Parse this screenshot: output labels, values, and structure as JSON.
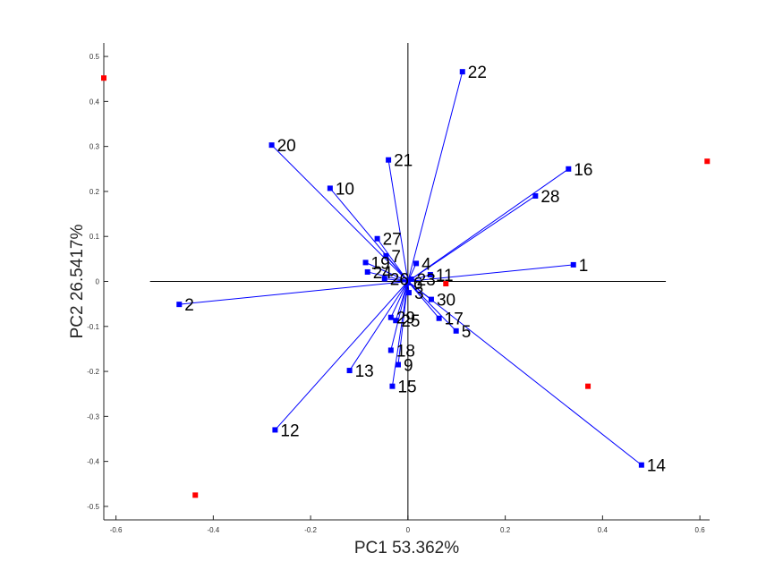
{
  "chart_data": {
    "type": "scatter",
    "title": "",
    "xlabel": "PC1 53.362%",
    "ylabel": "PC2 26.5417%",
    "xlim": [
      -0.625,
      0.62
    ],
    "ylim": [
      -0.53,
      0.53
    ],
    "x_ticks": [
      -0.6,
      -0.4,
      -0.2,
      0,
      0.2,
      0.4,
      0.6
    ],
    "x_tick_labels": [
      "-0.6",
      "-0.4",
      "-0.2",
      "0",
      "0.2",
      "0.4",
      "0.6"
    ],
    "y_ticks": [
      -0.5,
      -0.4,
      -0.3,
      -0.2,
      -0.1,
      0,
      0.1,
      0.2,
      0.3,
      0.4,
      0.5
    ],
    "y_tick_labels": [
      "-0.5",
      "-0.4",
      "-0.3",
      "-0.2",
      "-0.1",
      "0",
      "0.1",
      "0.2",
      "0.3",
      "0.4",
      "0.5"
    ],
    "grid": false,
    "reference_lines": {
      "x": [
        -0.53,
        0.53
      ],
      "y": [
        -0.53,
        0.53
      ]
    },
    "loadings": {
      "color": "#0000ff",
      "points": [
        {
          "label": "1",
          "x": 0.34,
          "y": 0.037
        },
        {
          "label": "2",
          "x": -0.47,
          "y": -0.051
        },
        {
          "label": "3",
          "x": 0.002,
          "y": -0.025
        },
        {
          "label": "4",
          "x": 0.017,
          "y": 0.04
        },
        {
          "label": "5",
          "x": 0.099,
          "y": -0.11
        },
        {
          "label": "6",
          "x": 0.0,
          "y": -0.003
        },
        {
          "label": "7",
          "x": -0.045,
          "y": 0.057
        },
        {
          "label": "9",
          "x": -0.02,
          "y": -0.185
        },
        {
          "label": "10",
          "x": -0.16,
          "y": 0.207
        },
        {
          "label": "11",
          "x": 0.046,
          "y": 0.015
        },
        {
          "label": "12",
          "x": -0.273,
          "y": -0.33
        },
        {
          "label": "13",
          "x": -0.12,
          "y": -0.198
        },
        {
          "label": "14",
          "x": 0.48,
          "y": -0.408
        },
        {
          "label": "15",
          "x": -0.032,
          "y": -0.233
        },
        {
          "label": "16",
          "x": 0.33,
          "y": 0.25
        },
        {
          "label": "17",
          "x": 0.064,
          "y": -0.082
        },
        {
          "label": "18",
          "x": -0.035,
          "y": -0.153
        },
        {
          "label": "19",
          "x": -0.087,
          "y": 0.042
        },
        {
          "label": "20",
          "x": -0.28,
          "y": 0.303
        },
        {
          "label": "21",
          "x": -0.04,
          "y": 0.27
        },
        {
          "label": "22",
          "x": 0.112,
          "y": 0.466
        },
        {
          "label": "23",
          "x": 0.007,
          "y": 0.005
        },
        {
          "label": "24",
          "x": -0.083,
          "y": 0.021
        },
        {
          "label": "25",
          "x": -0.025,
          "y": -0.087
        },
        {
          "label": "26",
          "x": -0.048,
          "y": 0.006
        },
        {
          "label": "27",
          "x": -0.063,
          "y": 0.095
        },
        {
          "label": "28",
          "x": 0.262,
          "y": 0.19
        },
        {
          "label": "29",
          "x": -0.035,
          "y": -0.08
        },
        {
          "label": "30",
          "x": 0.048,
          "y": -0.04
        }
      ]
    },
    "scores": {
      "color": "#ff0000",
      "points": [
        {
          "x": -0.625,
          "y": 0.452
        },
        {
          "x": 0.615,
          "y": 0.267
        },
        {
          "x": 0.37,
          "y": -0.233
        },
        {
          "x": 0.078,
          "y": -0.005
        },
        {
          "x": -0.437,
          "y": -0.475
        }
      ]
    }
  }
}
